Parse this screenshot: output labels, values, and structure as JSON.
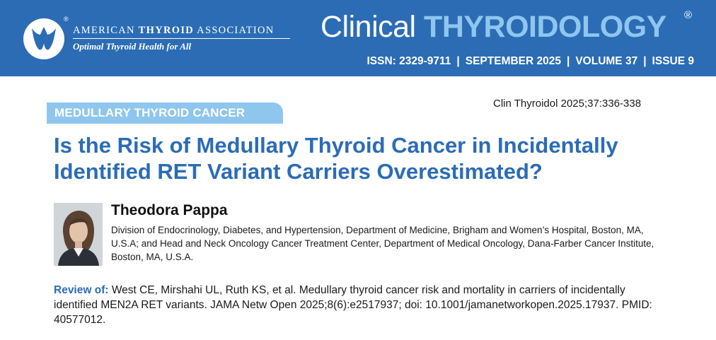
{
  "header": {
    "association_name_pre": "AMERICAN ",
    "association_name_bold": "THYROID",
    "association_name_post": " ASSOCIATION",
    "registered_mark": "®",
    "tagline": "Optimal Thyroid Health for All",
    "journal_word1": "Clinical ",
    "journal_word2": "THYROIDOLOGY",
    "journal_registered": "®",
    "issn": "ISSN: 2329-9711",
    "date": "SEPTEMBER 2025",
    "volume": "VOLUME 37",
    "issue": "ISSUE 9",
    "separator": "|"
  },
  "article": {
    "citation": "Clin Thyroidol 2025;37:336-338",
    "section": "MEDULLARY THYROID CANCER",
    "title": "Is the Risk of Medullary Thyroid Cancer in Incidentally Identified RET Variant Carriers Overestimated?",
    "author_name": "Theodora Pappa",
    "affiliation": "Division of Endocrinology, Diabetes, and Hypertension, Department of Medicine, Brigham and Women’s Hospital, Boston, MA, U.S.A; and Head and Neck Oncology Cancer Treatment Center, Department of Medical Oncology, Dana-Farber Cancer Institute, Boston, MA, U.S.A.",
    "review_label": "Review of:",
    "review_text": " West CE, Mirshahi UL, Ruth KS, et al. Medullary thyroid cancer risk and mortality in carriers of incidentally identified MEN2A RET variants. JAMA Netw Open 2025;8(6):e2517937; doi: 10.1001/jamanetworkopen.2025.17937. PMID: 40577012."
  },
  "colors": {
    "header_blue": "#2b6cb5",
    "light_blue": "#8fc6ee",
    "title_blue": "#2b6cb5"
  },
  "icons": {
    "association_logo": "thyroid-logo-icon",
    "author_photo": "author-portrait"
  }
}
